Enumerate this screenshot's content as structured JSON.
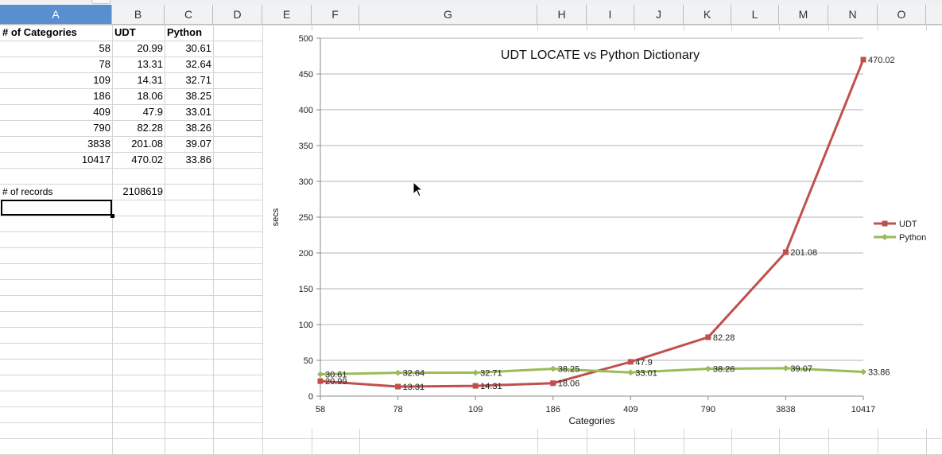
{
  "columns": [
    "A",
    "B",
    "C",
    "D",
    "E",
    "F",
    "G",
    "H",
    "I",
    "J",
    "K",
    "L",
    "M",
    "N",
    "O"
  ],
  "table": {
    "headers": [
      "# of Categories",
      "UDT",
      "Python"
    ],
    "rows": [
      [
        "58",
        "20.99",
        "30.61"
      ],
      [
        "78",
        "13.31",
        "32.64"
      ],
      [
        "109",
        "14.31",
        "32.71"
      ],
      [
        "186",
        "18.06",
        "38.25"
      ],
      [
        "409",
        "47.9",
        "33.01"
      ],
      [
        "790",
        "82.28",
        "38.26"
      ],
      [
        "3838",
        "201.08",
        "39.07"
      ],
      [
        "10417",
        "470.02",
        "33.86"
      ]
    ],
    "records_label": "# of records",
    "records_value": "2108619"
  },
  "chart_data": {
    "type": "line",
    "title": "UDT LOCATE vs Python Dictionary",
    "xlabel": "Categories",
    "ylabel": "secs",
    "categories": [
      "58",
      "78",
      "109",
      "186",
      "409",
      "790",
      "3838",
      "10417"
    ],
    "ylim": [
      0,
      500
    ],
    "yticks": [
      0,
      50,
      100,
      150,
      200,
      250,
      300,
      350,
      400,
      450,
      500
    ],
    "grid": true,
    "legend": "right",
    "series": [
      {
        "name": "UDT",
        "color": "#c0504d",
        "marker": "square",
        "values": [
          20.99,
          13.31,
          14.31,
          18.06,
          47.9,
          82.28,
          201.08,
          470.02
        ],
        "labels": [
          "20.99",
          "13.31",
          "14.31",
          "18.06",
          "47.9",
          "82.28",
          "201.08",
          "470.02"
        ]
      },
      {
        "name": "Python",
        "color": "#9bbb59",
        "marker": "diamond",
        "values": [
          30.61,
          32.64,
          32.71,
          38.25,
          33.01,
          38.26,
          39.07,
          33.86
        ],
        "labels": [
          "30.61",
          "32.64",
          "32.71",
          "38.25",
          "33.01",
          "38.26",
          "39.07",
          "33.86"
        ]
      }
    ]
  }
}
